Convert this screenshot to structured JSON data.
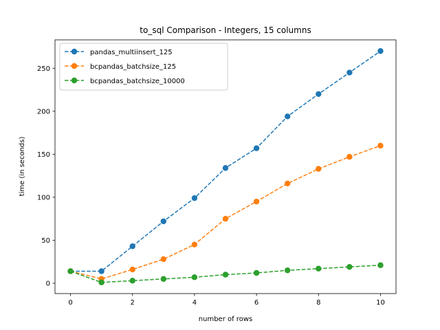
{
  "chart_data": {
    "type": "line",
    "title": "to_sql Comparison - Integers, 15 columns",
    "xlabel": "number of rows",
    "ylabel": "time (in seconds)",
    "xlim": [
      -0.5,
      10.5
    ],
    "ylim": [
      -12,
      283
    ],
    "xticks": [
      0,
      2,
      4,
      6,
      8,
      10
    ],
    "yticks": [
      0,
      50,
      100,
      150,
      200,
      250
    ],
    "grid": false,
    "legend_position": "top-left",
    "x": [
      0,
      1,
      2,
      3,
      4,
      5,
      6,
      7,
      8,
      9,
      10
    ],
    "series": [
      {
        "name": "pandas_multiinsert_125",
        "color": "#1f77b4",
        "values": [
          14,
          14,
          43,
          72,
          99,
          134,
          157,
          194,
          220,
          245,
          270
        ]
      },
      {
        "name": "bcpandas_batchsize_125",
        "color": "#ff7f0e",
        "values": [
          14,
          5,
          16,
          28,
          45,
          75,
          95,
          116,
          133,
          147,
          160
        ]
      },
      {
        "name": "bcpandas_batchsize_10000",
        "color": "#2ca02c",
        "values": [
          14,
          1,
          3,
          5,
          7,
          10,
          12,
          15,
          17,
          19,
          21
        ]
      }
    ]
  }
}
